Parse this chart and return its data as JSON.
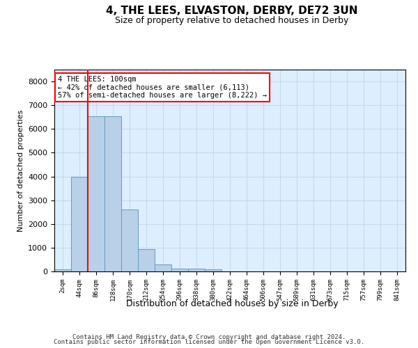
{
  "title": "4, THE LEES, ELVASTON, DERBY, DE72 3UN",
  "subtitle": "Size of property relative to detached houses in Derby",
  "xlabel": "Distribution of detached houses by size in Derby",
  "ylabel": "Number of detached properties",
  "footer_line1": "Contains HM Land Registry data © Crown copyright and database right 2024.",
  "footer_line2": "Contains public sector information licensed under the Open Government Licence v3.0.",
  "bin_labels": [
    "2sqm",
    "44sqm",
    "86sqm",
    "128sqm",
    "170sqm",
    "212sqm",
    "254sqm",
    "296sqm",
    "338sqm",
    "380sqm",
    "422sqm",
    "464sqm",
    "506sqm",
    "547sqm",
    "589sqm",
    "631sqm",
    "673sqm",
    "715sqm",
    "757sqm",
    "799sqm",
    "841sqm"
  ],
  "bar_values": [
    80,
    3980,
    6550,
    6550,
    2600,
    950,
    300,
    120,
    110,
    90,
    0,
    0,
    0,
    0,
    0,
    0,
    0,
    0,
    0,
    0,
    0
  ],
  "bar_color": "#b8d0e8",
  "bar_edge_color": "#6699bb",
  "grid_color": "#c8daea",
  "axes_background": "#ddeeff",
  "red_line_bin_index": 2,
  "annotation_text": "4 THE LEES: 100sqm\n← 42% of detached houses are smaller (6,113)\n57% of semi-detached houses are larger (8,222) →",
  "annotation_box_color": "white",
  "annotation_box_edge": "red",
  "ylim": [
    0,
    8500
  ],
  "yticks": [
    0,
    1000,
    2000,
    3000,
    4000,
    5000,
    6000,
    7000,
    8000
  ]
}
